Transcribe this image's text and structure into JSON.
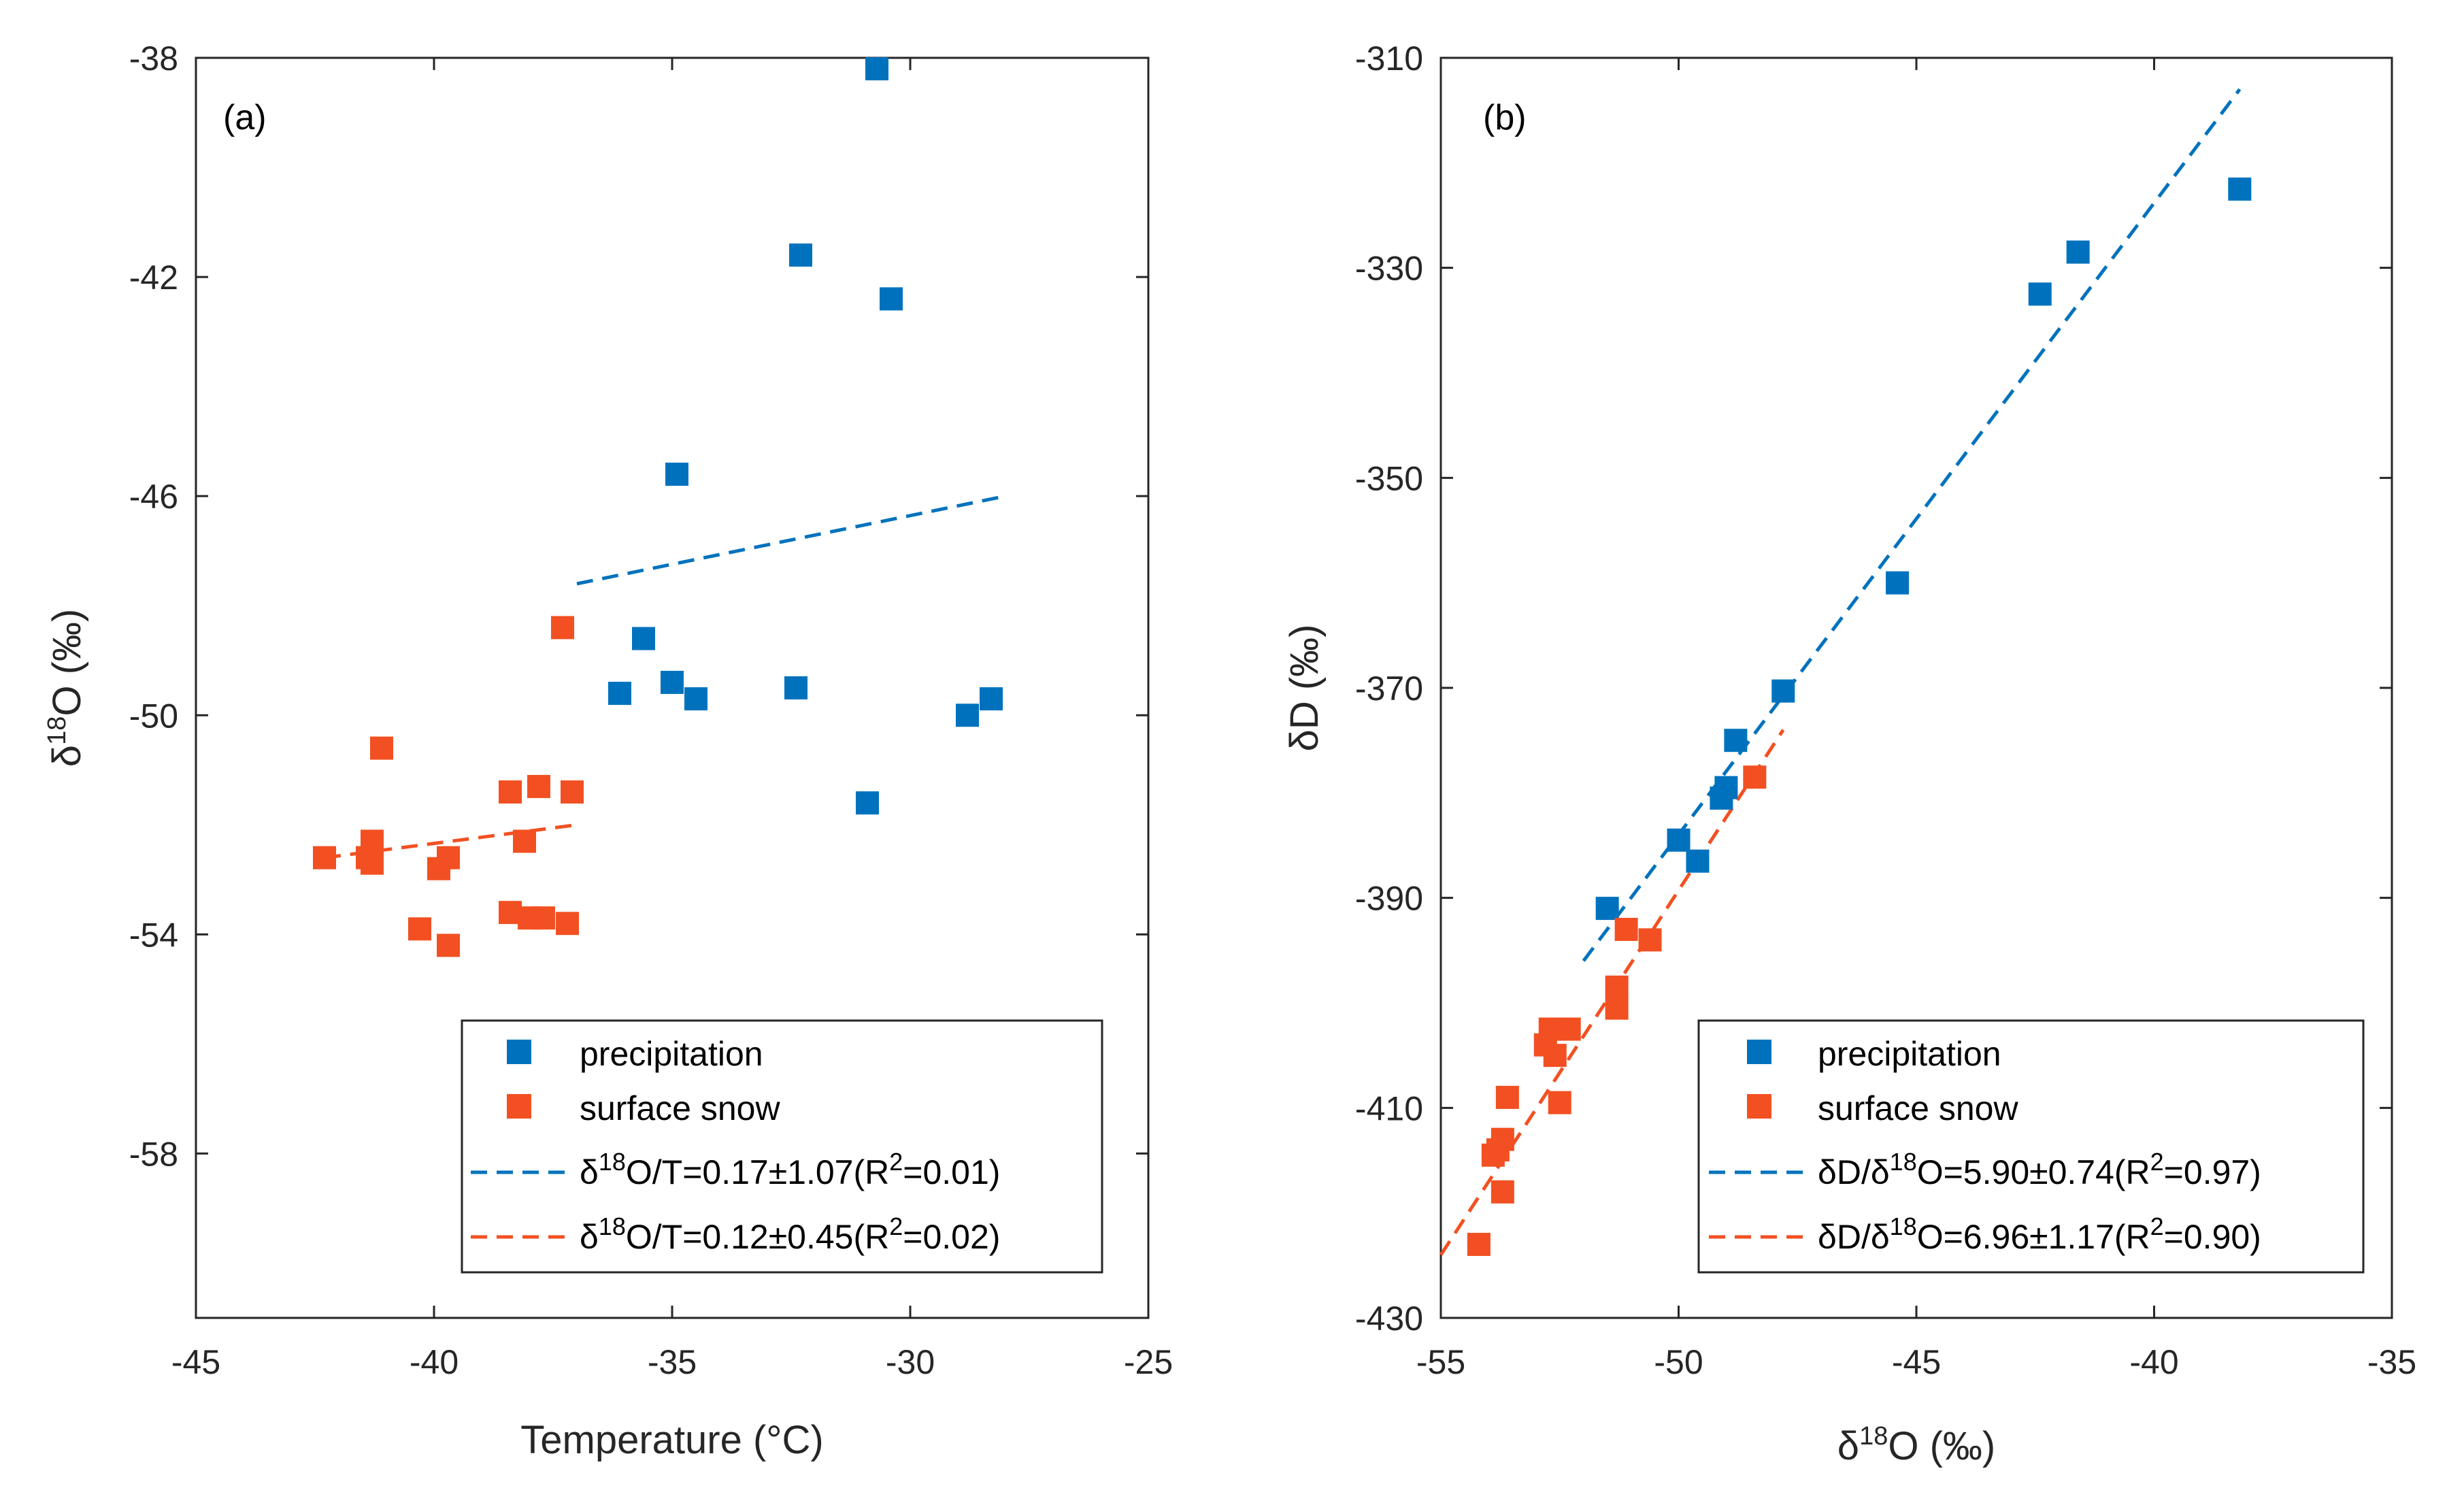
{
  "colors": {
    "precipitation": "#0072BD",
    "surface_snow": "#F25022",
    "axis": "#262626"
  },
  "chart_data": [
    {
      "type": "scatter",
      "panel_label": "(a)",
      "xlabel": "Temperature (°C)",
      "ylabel_main": "δ",
      "ylabel_sup": "18",
      "ylabel_rest": "O (‰)",
      "xlim": [
        -45,
        -25
      ],
      "ylim": [
        -61,
        -38
      ],
      "xticks": [
        -45,
        -40,
        -35,
        -30,
        -25
      ],
      "xtick_labels": [
        "-45",
        "-40",
        "-35",
        "-30",
        "-25"
      ],
      "yticks": [
        -38,
        -42,
        -46,
        -50,
        -54,
        -58
      ],
      "ytick_labels": [
        "-38",
        "-42",
        "-46",
        "-50",
        "-54",
        "-58"
      ],
      "series": [
        {
          "name": "precipitation",
          "x": [
            -30.7,
            -32.3,
            -30.4,
            -34.9,
            -35.6,
            -36.1,
            -35.0,
            -34.5,
            -32.4,
            -28.8,
            -28.3,
            -30.9
          ],
          "y": [
            -38.2,
            -41.6,
            -42.4,
            -45.6,
            -48.6,
            -49.6,
            -49.4,
            -49.7,
            -49.5,
            -50.0,
            -49.7,
            -51.6
          ]
        },
        {
          "name": "surface snow",
          "x": [
            -37.3,
            -41.1,
            -38.4,
            -37.8,
            -37.1,
            -38.1,
            -42.3,
            -41.4,
            -41.3,
            -41.3,
            -39.9,
            -39.7,
            -38.4,
            -38.0,
            -37.7,
            -37.2,
            -40.3,
            -39.7
          ],
          "y": [
            -48.4,
            -50.6,
            -51.4,
            -51.3,
            -51.4,
            -52.3,
            -52.6,
            -52.6,
            -52.3,
            -52.7,
            -52.8,
            -52.6,
            -53.6,
            -53.7,
            -53.7,
            -53.8,
            -53.9,
            -54.2
          ]
        }
      ],
      "fits": [
        {
          "name": "precipitation",
          "x": [
            -37.0,
            -28.0
          ],
          "y": [
            -47.6,
            -46.0
          ]
        },
        {
          "name": "surface snow",
          "x": [
            -42.3,
            -37.0
          ],
          "y": [
            -52.6,
            -52.0
          ]
        }
      ],
      "legend": {
        "placement": "bottom-right",
        "entries": [
          {
            "kind": "marker",
            "series": "precipitation",
            "text": "precipitation"
          },
          {
            "kind": "marker",
            "series": "surface_snow",
            "text": "surface snow"
          },
          {
            "kind": "line",
            "series": "precipitation",
            "pre": "δ",
            "sup1": "18",
            "mid": "O/T=0.17±1.07(R",
            "sup2": "2",
            "post": "=0.01)"
          },
          {
            "kind": "line",
            "series": "surface_snow",
            "pre": "δ",
            "sup1": "18",
            "mid": "O/T=0.12±0.45(R",
            "sup2": "2",
            "post": "=0.02)"
          }
        ]
      }
    },
    {
      "type": "scatter",
      "panel_label": "(b)",
      "xlabel_main": "δ",
      "xlabel_sup": "18",
      "xlabel_rest": "O (‰)",
      "ylabel": "δD (‰)",
      "xlim": [
        -55,
        -35
      ],
      "ylim": [
        -430,
        -310
      ],
      "xticks": [
        -55,
        -50,
        -45,
        -40,
        -35
      ],
      "xtick_labels": [
        "-55",
        "-50",
        "-45",
        "-40",
        "-35"
      ],
      "yticks": [
        -310,
        -330,
        -350,
        -370,
        -390,
        -410,
        -430
      ],
      "ytick_labels": [
        "-310",
        "-330",
        "-350",
        "-370",
        "-390",
        "-410",
        "-430"
      ],
      "series": [
        {
          "name": "precipitation",
          "x": [
            -38.2,
            -41.6,
            -42.4,
            -45.4,
            -47.8,
            -48.8,
            -49.0,
            -49.1,
            -49.6,
            -50.0,
            -51.5
          ],
          "y": [
            -322.5,
            -328.5,
            -332.5,
            -360.0,
            -370.3,
            -375.0,
            -379.5,
            -380.5,
            -386.5,
            -384.5,
            -391.0
          ]
        },
        {
          "name": "surface snow",
          "x": [
            -48.4,
            -50.6,
            -51.1,
            -51.3,
            -51.3,
            -52.3,
            -52.7,
            -52.8,
            -52.6,
            -52.5,
            -53.6,
            -53.7,
            -53.8,
            -53.9,
            -53.7,
            -54.2
          ],
          "y": [
            -378.5,
            -394.0,
            -393.0,
            -398.5,
            -400.5,
            -402.5,
            -402.5,
            -404.0,
            -405.0,
            -409.5,
            -409.0,
            -413.0,
            -414.0,
            -414.5,
            -418.0,
            -423.0
          ]
        }
      ],
      "fits": [
        {
          "name": "precipitation",
          "x": [
            -52.0,
            -38.2
          ],
          "y": [
            -396.0,
            -313.0
          ]
        },
        {
          "name": "surface snow",
          "x": [
            -55.0,
            -47.8
          ],
          "y": [
            -424.0,
            -374.0
          ]
        }
      ],
      "legend": {
        "placement": "bottom-right",
        "entries": [
          {
            "kind": "marker",
            "series": "precipitation",
            "text": "precipitation"
          },
          {
            "kind": "marker",
            "series": "surface_snow",
            "text": "surface snow"
          },
          {
            "kind": "line",
            "series": "precipitation",
            "pre": "δD/δ",
            "sup1": "18",
            "mid": "O=5.90±0.74(R",
            "sup2": "2",
            "post": "=0.97)"
          },
          {
            "kind": "line",
            "series": "surface_snow",
            "pre": "δD/δ",
            "sup1": "18",
            "mid": "O=6.96±1.17(R",
            "sup2": "2",
            "post": "=0.90)"
          }
        ]
      }
    }
  ]
}
